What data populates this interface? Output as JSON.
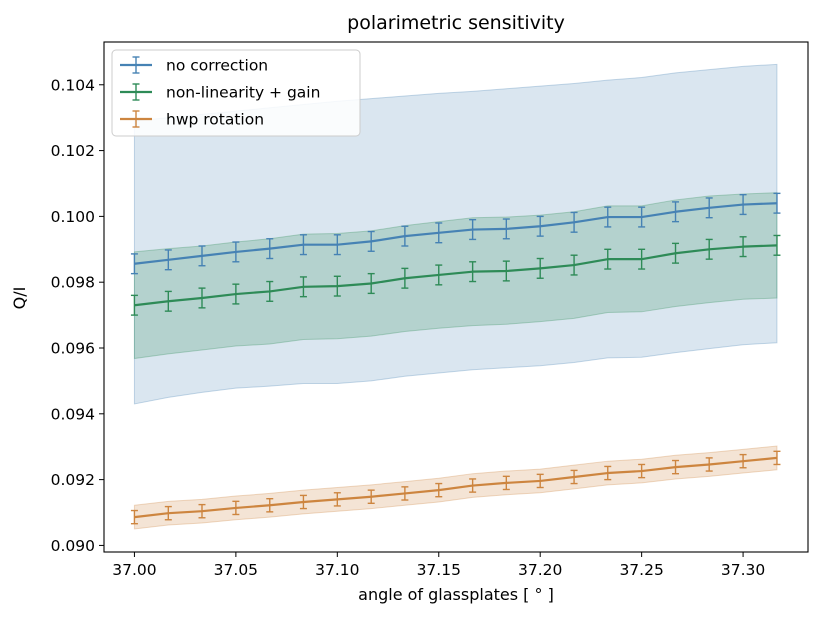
{
  "chart_data": {
    "type": "line",
    "title": "polarimetric sensitivity",
    "xlabel": "angle of glassplates [$^\\circ$]",
    "xlabel_display": "angle of glassplates [ ° ]",
    "ylabel": "Q/I",
    "xlim": [
      36.985,
      37.332
    ],
    "ylim": [
      0.0898,
      0.1053
    ],
    "xticks": [
      37.0,
      37.05,
      37.1,
      37.15,
      37.2,
      37.25,
      37.3
    ],
    "xtick_labels": [
      "37.00",
      "37.05",
      "37.10",
      "37.15",
      "37.20",
      "37.25",
      "37.30"
    ],
    "yticks": [
      0.09,
      0.092,
      0.094,
      0.096,
      0.098,
      0.1,
      0.102,
      0.104
    ],
    "ytick_labels": [
      "0.090",
      "0.092",
      "0.094",
      "0.096",
      "0.098",
      "0.100",
      "0.102",
      "0.104"
    ],
    "legend_position": "top-left",
    "x": [
      37.0,
      37.0167,
      37.0333,
      37.05,
      37.0667,
      37.0833,
      37.1,
      37.1167,
      37.1333,
      37.15,
      37.1667,
      37.1833,
      37.2,
      37.2167,
      37.2333,
      37.25,
      37.2667,
      37.2833,
      37.3,
      37.3167
    ],
    "series": [
      {
        "name": "no correction",
        "color": "#4682b4",
        "values": [
          0.09856,
          0.09868,
          0.0988,
          0.09892,
          0.09902,
          0.09914,
          0.09914,
          0.09924,
          0.0994,
          0.0995,
          0.0996,
          0.09962,
          0.0997,
          0.09982,
          0.09998,
          0.09998,
          0.10014,
          0.10026,
          0.10036,
          0.1004
        ],
        "errors": [
          0.0003,
          0.0003,
          0.0003,
          0.0003,
          0.0003,
          0.0003,
          0.0003,
          0.0003,
          0.0003,
          0.0003,
          0.0003,
          0.0003,
          0.0003,
          0.0003,
          0.0003,
          0.0003,
          0.0003,
          0.0003,
          0.0003,
          0.0003
        ],
        "band_lower": [
          0.0943,
          0.0945,
          0.09465,
          0.09478,
          0.09484,
          0.09492,
          0.09492,
          0.095,
          0.09514,
          0.09524,
          0.09534,
          0.0954,
          0.09546,
          0.09556,
          0.0957,
          0.09572,
          0.09586,
          0.09598,
          0.0961,
          0.09616
        ],
        "band_upper": [
          0.1029,
          0.103,
          0.1031,
          0.1032,
          0.1033,
          0.1034,
          0.1035,
          0.10358,
          0.10366,
          0.10374,
          0.1038,
          0.10388,
          0.10396,
          0.10404,
          0.10414,
          0.10422,
          0.10436,
          0.10446,
          0.10456,
          0.10462
        ]
      },
      {
        "name": "non-linearity + gain",
        "color": "#2e8b57",
        "values": [
          0.0973,
          0.09742,
          0.09752,
          0.09764,
          0.09772,
          0.09786,
          0.09788,
          0.09796,
          0.09812,
          0.09822,
          0.09832,
          0.09834,
          0.09842,
          0.09852,
          0.0987,
          0.0987,
          0.09888,
          0.099,
          0.09908,
          0.09912
        ],
        "errors": [
          0.0003,
          0.0003,
          0.0003,
          0.0003,
          0.0003,
          0.0003,
          0.0003,
          0.0003,
          0.0003,
          0.0003,
          0.0003,
          0.0003,
          0.0003,
          0.0003,
          0.0003,
          0.0003,
          0.0003,
          0.0003,
          0.0003,
          0.0003
        ],
        "band_lower": [
          0.09568,
          0.09582,
          0.09594,
          0.09606,
          0.09612,
          0.09626,
          0.09628,
          0.09636,
          0.0965,
          0.0966,
          0.09668,
          0.09672,
          0.0968,
          0.0969,
          0.09708,
          0.0971,
          0.09726,
          0.09738,
          0.09748,
          0.09752
        ],
        "band_upper": [
          0.09892,
          0.09902,
          0.0991,
          0.09922,
          0.09932,
          0.09946,
          0.09948,
          0.09956,
          0.09972,
          0.09984,
          0.09996,
          0.09998,
          0.10004,
          0.10014,
          0.10032,
          0.10032,
          0.1005,
          0.10062,
          0.10068,
          0.10072
        ]
      },
      {
        "name": "hwp rotation",
        "color": "#cd853f",
        "values": [
          0.09086,
          0.09098,
          0.09104,
          0.09114,
          0.09122,
          0.09132,
          0.0914,
          0.09148,
          0.09158,
          0.09168,
          0.09182,
          0.0919,
          0.09196,
          0.09208,
          0.0922,
          0.09226,
          0.09238,
          0.09246,
          0.09256,
          0.09266
        ],
        "errors": [
          0.0002,
          0.0002,
          0.0002,
          0.0002,
          0.0002,
          0.0002,
          0.0002,
          0.0002,
          0.0002,
          0.0002,
          0.0002,
          0.0002,
          0.0002,
          0.0002,
          0.0002,
          0.0002,
          0.0002,
          0.0002,
          0.0002,
          0.0002
        ],
        "band_lower": [
          0.0905,
          0.09062,
          0.09068,
          0.09078,
          0.09086,
          0.09096,
          0.09104,
          0.09112,
          0.09122,
          0.09132,
          0.09146,
          0.09154,
          0.0916,
          0.09172,
          0.09184,
          0.0919,
          0.09202,
          0.0921,
          0.0922,
          0.0923
        ],
        "band_upper": [
          0.09122,
          0.09134,
          0.0914,
          0.0915,
          0.09158,
          0.09168,
          0.09176,
          0.09184,
          0.09194,
          0.09204,
          0.09218,
          0.09226,
          0.09232,
          0.09244,
          0.09256,
          0.09262,
          0.09274,
          0.09282,
          0.09292,
          0.09302
        ]
      }
    ]
  }
}
